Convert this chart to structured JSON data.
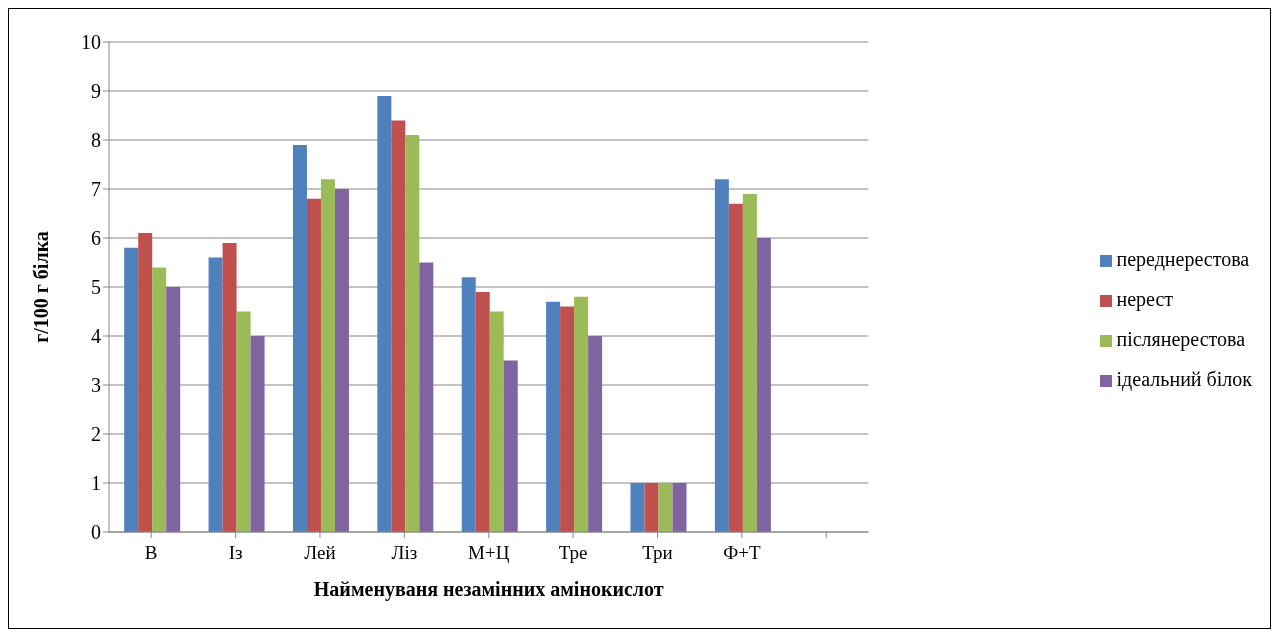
{
  "chart_data": {
    "type": "bar",
    "xlabel": "Найменуваня незамінних амінокислот",
    "ylabel": "г/100 г білка",
    "categories": [
      "В",
      "Із",
      "Лей",
      "Ліз",
      "М+Ц",
      "Тре",
      "Три",
      "Ф+Т",
      null
    ],
    "series": [
      {
        "name": "переднерестова",
        "color": "#4f81bd",
        "values": [
          5.8,
          5.6,
          7.9,
          8.9,
          5.2,
          4.7,
          1,
          7.2,
          null
        ]
      },
      {
        "name": "нерест",
        "color": "#c0504d",
        "values": [
          6.1,
          5.9,
          6.8,
          8.4,
          4.9,
          4.6,
          1,
          6.7,
          null
        ]
      },
      {
        "name": "післянерестова",
        "color": "#9bbb59",
        "values": [
          5.4,
          4.5,
          7.2,
          8.1,
          4.5,
          4.8,
          1,
          6.9,
          null
        ]
      },
      {
        "name": "ідеальний білок",
        "color": "#8064a2",
        "values": [
          5.0,
          4.0,
          7.0,
          5.5,
          3.5,
          4.0,
          1,
          6.0,
          null
        ]
      }
    ],
    "ylim": [
      0,
      10
    ],
    "yticks": [
      0,
      1,
      2,
      3,
      4,
      5,
      6,
      7,
      8,
      9,
      10
    ],
    "grid": "y",
    "legend": "right"
  }
}
